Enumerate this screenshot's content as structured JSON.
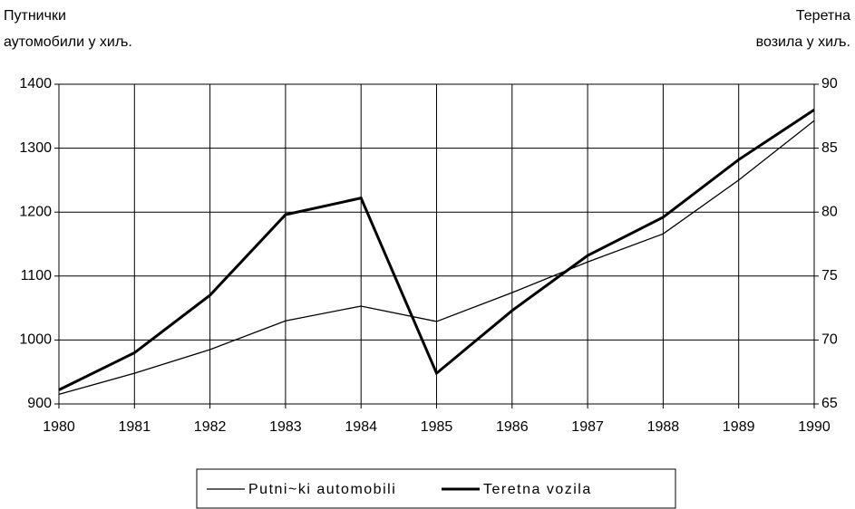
{
  "chart_data": {
    "type": "line",
    "ylabel": [
      "Путнички",
      "аутомобили у хиљ."
    ],
    "y2label": [
      "Теретна",
      "возила у хиљ."
    ],
    "categories": [
      "1980",
      "1981",
      "1982",
      "1983",
      "1984",
      "1985",
      "1986",
      "1987",
      "1988",
      "1989",
      "1990"
    ],
    "series": [
      {
        "name": "Putni~ki automobili",
        "color": "#000000",
        "width": 1.3,
        "values": [
          915,
          948,
          985,
          1030,
          1053,
          1029,
          1074,
          1122,
          1166,
          1250,
          1343
        ]
      },
      {
        "name": "Teretna vozila",
        "color": "#000000",
        "width": 3,
        "axis": "y2",
        "values": [
          66.1,
          69.0,
          73.5,
          79.8,
          81.1,
          67.4,
          72.3,
          76.6,
          79.6,
          84.1,
          88.0
        ]
      }
    ],
    "ylim": [
      900,
      1400
    ],
    "yticks": [
      900,
      1000,
      1100,
      1200,
      1300,
      1400
    ],
    "y2lim": [
      65,
      90
    ],
    "y2ticks": [
      65,
      70,
      75,
      80,
      85,
      90
    ],
    "grid": true,
    "legend": "bottom"
  }
}
